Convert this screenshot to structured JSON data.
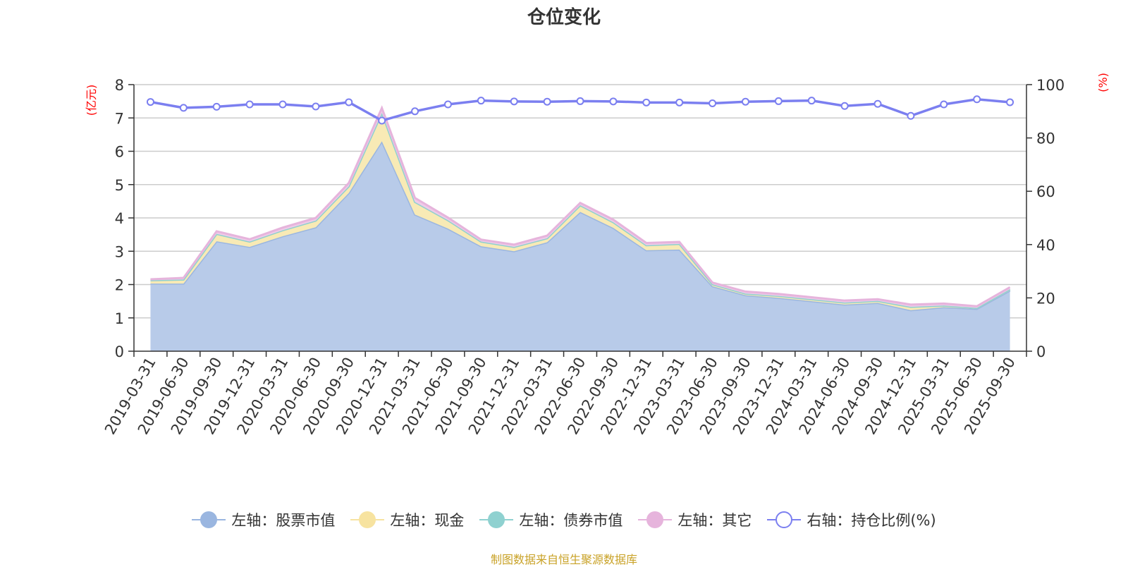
{
  "chart_data": {
    "type": "area",
    "title": "仓位变化",
    "left_axis_unit": "(亿元)",
    "right_axis_unit": "(%)",
    "ylim_left": [
      0,
      8
    ],
    "ylim_right": [
      0,
      100
    ],
    "left_ticks": [
      0,
      1,
      2,
      3,
      4,
      5,
      6,
      7,
      8
    ],
    "right_ticks": [
      0,
      20,
      40,
      60,
      80,
      100
    ],
    "grid": true,
    "stacked": true,
    "x": [
      "2019-03-31",
      "2019-06-30",
      "2019-09-30",
      "2019-12-31",
      "2020-03-31",
      "2020-06-30",
      "2020-09-30",
      "2020-12-31",
      "2021-03-31",
      "2021-06-30",
      "2021-09-30",
      "2021-12-31",
      "2022-03-31",
      "2022-06-30",
      "2022-09-30",
      "2022-12-31",
      "2023-03-31",
      "2023-06-30",
      "2023-09-30",
      "2023-12-31",
      "2024-03-31",
      "2024-06-30",
      "2024-09-30",
      "2024-12-31",
      "2025-03-31",
      "2025-06-30",
      "2025-09-30"
    ],
    "series": [
      {
        "name": "左轴：股票市值",
        "axis": "left",
        "color": "#9ab6e0",
        "fill": "#b8cbe9",
        "values": [
          2.03,
          2.03,
          3.3,
          3.13,
          3.45,
          3.72,
          4.75,
          6.3,
          4.1,
          3.68,
          3.15,
          3.0,
          3.27,
          4.18,
          3.7,
          3.03,
          3.05,
          1.95,
          1.68,
          1.6,
          1.5,
          1.4,
          1.45,
          1.23,
          1.32,
          1.27,
          1.82
        ]
      },
      {
        "name": "左轴：现金",
        "axis": "left",
        "color": "#f7e3a0",
        "fill": "#f8eab5",
        "values": [
          0.1,
          0.12,
          0.22,
          0.16,
          0.18,
          0.2,
          0.2,
          0.85,
          0.38,
          0.25,
          0.14,
          0.13,
          0.12,
          0.2,
          0.17,
          0.15,
          0.17,
          0.06,
          0.05,
          0.06,
          0.06,
          0.06,
          0.06,
          0.1,
          0.05,
          0.03,
          0.04
        ]
      },
      {
        "name": "左轴：债券市值",
        "axis": "left",
        "color": "#8fd1d0",
        "fill": "#b3e0df",
        "values": [
          0,
          0,
          0,
          0,
          0,
          0,
          0,
          0,
          0,
          0,
          0,
          0,
          0,
          0,
          0,
          0,
          0,
          0,
          0,
          0,
          0,
          0,
          0,
          0,
          0,
          0,
          0
        ]
      },
      {
        "name": "左轴：其它",
        "axis": "left",
        "color": "#e6b4dc",
        "fill": "#efcbe8",
        "values": [
          0.03,
          0.05,
          0.08,
          0.07,
          0.08,
          0.08,
          0.1,
          0.15,
          0.12,
          0.08,
          0.06,
          0.07,
          0.08,
          0.07,
          0.08,
          0.07,
          0.06,
          0.05,
          0.06,
          0.06,
          0.06,
          0.06,
          0.05,
          0.07,
          0.06,
          0.05,
          0.06
        ]
      },
      {
        "name": "右轴：持仓比例(%)",
        "axis": "right",
        "color": "#7b7ff0",
        "values": [
          93.5,
          91.3,
          91.7,
          92.6,
          92.6,
          91.8,
          93.4,
          86.5,
          90.0,
          92.6,
          94.0,
          93.7,
          93.6,
          93.8,
          93.7,
          93.3,
          93.3,
          93.0,
          93.6,
          93.8,
          94.0,
          92.0,
          92.8,
          88.3,
          92.6,
          94.5,
          93.4
        ]
      }
    ],
    "legend_position": "bottom",
    "source_note": "制图数据来自恒生聚源数据库"
  }
}
